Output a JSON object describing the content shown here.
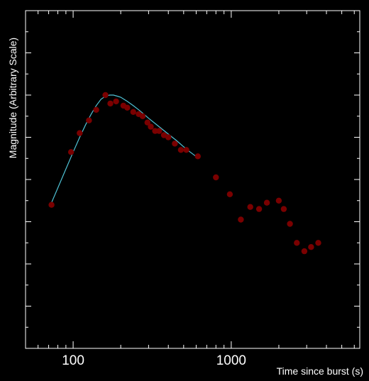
{
  "chart_data": {
    "type": "scatter",
    "title": "",
    "xlabel": "Time since burst (s)",
    "ylabel": "Magnitude (Arbitrary Scale)",
    "xscale": "log",
    "xlim": [
      50,
      6500
    ],
    "ylim": [
      0,
      16
    ],
    "x_ticks": [
      {
        "value": 100,
        "label": "100"
      },
      {
        "value": 1000,
        "label": "1000"
      }
    ],
    "grid": false,
    "legend": "none",
    "colors": {
      "background": "#000000",
      "axes": "#ffffff",
      "points": "#7a0000",
      "fit_line": "#4fc3d6"
    },
    "series": [
      {
        "type": "scatter",
        "x": [
          73,
          97,
          110,
          126,
          140,
          160,
          172,
          187,
          208,
          220,
          240,
          260,
          275,
          295,
          310,
          330,
          350,
          375,
          400,
          440,
          480,
          520,
          615,
          800,
          980,
          1150,
          1320,
          1500,
          1680,
          2000,
          2150,
          2350,
          2600,
          2900,
          3200,
          3550
        ],
        "y": [
          6.8,
          9.3,
          10.2,
          10.8,
          11.3,
          12.0,
          11.6,
          11.7,
          11.5,
          11.4,
          11.2,
          11.1,
          11.0,
          10.7,
          10.5,
          10.3,
          10.3,
          10.1,
          10.0,
          9.7,
          9.4,
          9.4,
          9.1,
          8.1,
          7.3,
          6.1,
          6.7,
          6.6,
          6.9,
          7.0,
          6.6,
          5.9,
          5.0,
          4.6,
          4.8,
          5.0
        ]
      },
      {
        "type": "line",
        "x": [
          73,
          80,
          90,
          100,
          110,
          120,
          130,
          140,
          150,
          160,
          170,
          180,
          190,
          200,
          220,
          240,
          260,
          280,
          300,
          350,
          400,
          450,
          500,
          550,
          610
        ],
        "y": [
          6.9,
          7.6,
          8.5,
          9.3,
          10.0,
          10.6,
          11.1,
          11.5,
          11.8,
          11.95,
          12.0,
          12.0,
          11.95,
          11.9,
          11.7,
          11.5,
          11.3,
          11.1,
          10.9,
          10.5,
          10.15,
          9.85,
          9.55,
          9.3,
          9.05
        ]
      }
    ]
  }
}
